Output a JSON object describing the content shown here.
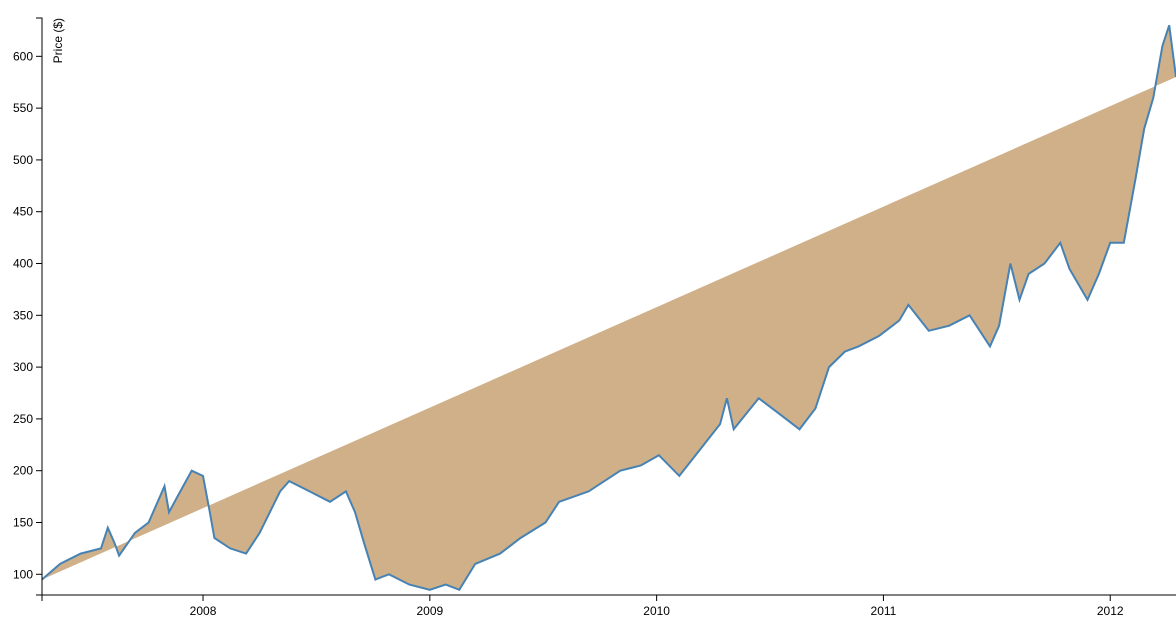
{
  "chart_data": {
    "type": "area",
    "y_label": "Price ($)",
    "x": [
      2007.29,
      2007.37,
      2007.46,
      2007.55,
      2007.58,
      2007.61,
      2007.63,
      2007.7,
      2007.76,
      2007.83,
      2007.85,
      2007.9,
      2007.95,
      2008.0,
      2008.03,
      2008.05,
      2008.12,
      2008.19,
      2008.25,
      2008.34,
      2008.38,
      2008.47,
      2008.56,
      2008.63,
      2008.67,
      2008.71,
      2008.76,
      2008.82,
      2008.91,
      2009.0,
      2009.07,
      2009.13,
      2009.2,
      2009.31,
      2009.4,
      2009.51,
      2009.57,
      2009.7,
      2009.84,
      2009.93,
      2010.01,
      2010.1,
      2010.19,
      2010.28,
      2010.31,
      2010.34,
      2010.45,
      2010.54,
      2010.63,
      2010.7,
      2010.76,
      2010.83,
      2010.89,
      2010.98,
      2011.07,
      2011.11,
      2011.2,
      2011.29,
      2011.38,
      2011.47,
      2011.51,
      2011.56,
      2011.6,
      2011.64,
      2011.71,
      2011.78,
      2011.82,
      2011.9,
      2011.95,
      2012.0,
      2012.06,
      2012.11,
      2012.15,
      2012.19,
      2012.23,
      2012.26,
      2012.29
    ],
    "values": [
      95,
      110,
      120,
      125,
      145,
      130,
      118,
      140,
      150,
      185,
      160,
      180,
      200,
      195,
      160,
      135,
      125,
      120,
      140,
      180,
      190,
      180,
      170,
      180,
      160,
      130,
      95,
      100,
      90,
      85,
      90,
      85,
      110,
      120,
      135,
      150,
      170,
      180,
      200,
      205,
      215,
      195,
      220,
      245,
      270,
      240,
      270,
      255,
      240,
      260,
      300,
      315,
      320,
      330,
      345,
      360,
      335,
      340,
      350,
      320,
      340,
      400,
      365,
      390,
      400,
      420,
      395,
      365,
      390,
      420,
      420,
      480,
      530,
      560,
      610,
      630,
      580
    ],
    "xlim": [
      2007.29,
      2012.29
    ],
    "xticks": [
      2008,
      2009,
      2010,
      2011,
      2012
    ],
    "ylim": [
      80,
      637
    ],
    "yticks": [
      100,
      150,
      200,
      250,
      300,
      350,
      400,
      450,
      500,
      550,
      600
    ],
    "fill": "#cfb089",
    "color": "#4682b4",
    "grid": false
  }
}
